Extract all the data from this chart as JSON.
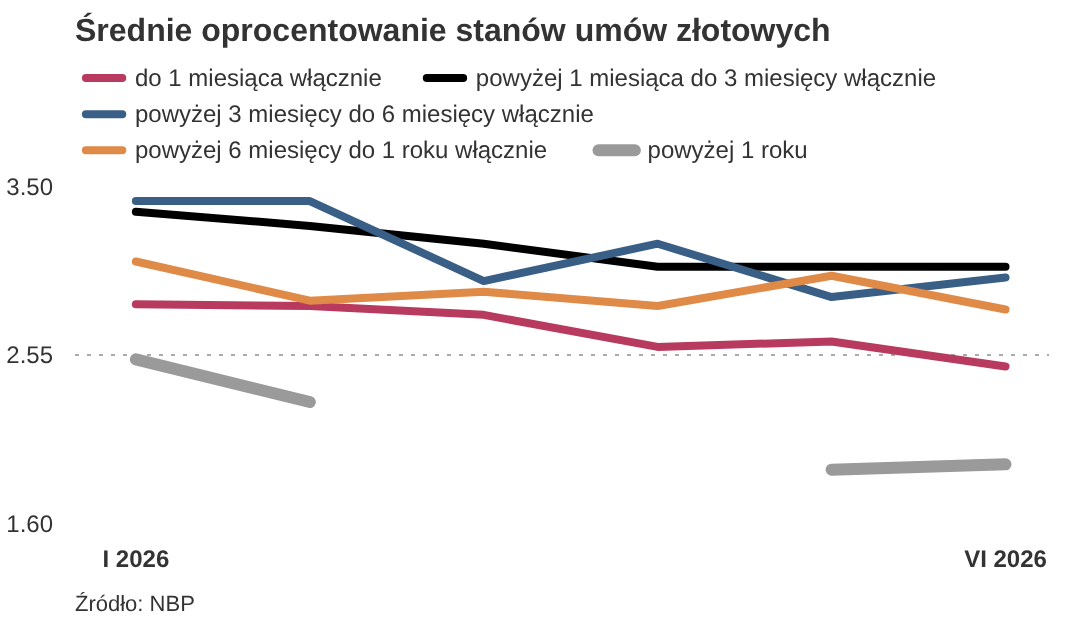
{
  "chart_data": {
    "type": "line",
    "title": "Średnie oprocentowanie stanów umów złotowych",
    "categories": [
      "I 2026",
      null,
      null,
      null,
      null,
      "VI 2026"
    ],
    "series": [
      {
        "name": "do 1 miesiąca włącznie",
        "color": "#b83a5e",
        "values": [
          2.83,
          2.82,
          2.77,
          2.59,
          2.62,
          2.48
        ]
      },
      {
        "name": "powyżej 1 miesiąca do 3 miesięcy włącznie",
        "color": "#000000",
        "values": [
          3.35,
          3.27,
          3.17,
          3.04,
          3.04,
          3.04
        ]
      },
      {
        "name": "powyżej 3 miesięcy do 6 miesięcy włącznie",
        "color": "#3a5f86",
        "values": [
          3.41,
          3.41,
          2.96,
          3.17,
          2.87,
          2.98
        ]
      },
      {
        "name": "powyżej 6 miesięcy do 1 roku włącznie",
        "color": "#e08a48",
        "values": [
          3.07,
          2.85,
          2.9,
          2.82,
          2.99,
          2.8
        ]
      },
      {
        "name": "powyżej 1 roku",
        "color": "#9a9a9a",
        "values": [
          2.52,
          2.28,
          null,
          null,
          1.9,
          1.93
        ]
      }
    ],
    "ylim": [
      1.6,
      3.5
    ],
    "yticks": [
      {
        "value": 1.6,
        "label": "1.60"
      },
      {
        "value": 2.55,
        "label": "2.55"
      },
      {
        "value": 3.5,
        "label": "3.50"
      }
    ],
    "grid": "y",
    "legend": "top",
    "annotations": [
      "Źródło: NBP"
    ]
  }
}
